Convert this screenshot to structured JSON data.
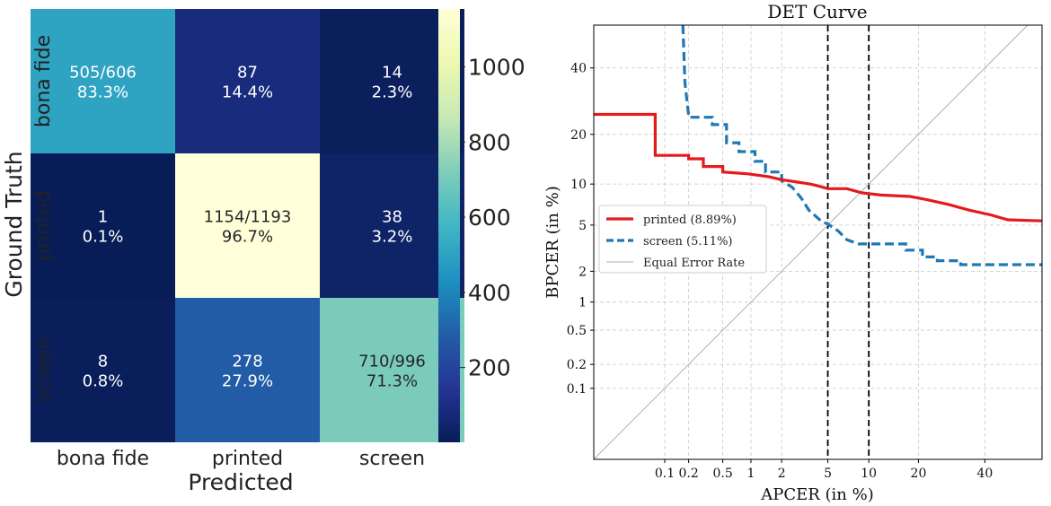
{
  "chart_data": [
    {
      "type": "heatmap",
      "title": "",
      "xlabel": "Predicted",
      "ylabel": "Ground Truth",
      "x_categories": [
        "bona fide",
        "printed",
        "screen"
      ],
      "y_categories": [
        "bona fide",
        "printed",
        "screen"
      ],
      "values": [
        [
          505,
          87,
          14
        ],
        [
          1,
          1154,
          38
        ],
        [
          8,
          278,
          710
        ]
      ],
      "cell_labels": [
        [
          [
            "505/606",
            "83.3%"
          ],
          [
            "87",
            "14.4%"
          ],
          [
            "14",
            "2.3%"
          ]
        ],
        [
          [
            "1",
            "0.1%"
          ],
          [
            "1154/1193",
            "96.7%"
          ],
          [
            "38",
            "3.2%"
          ]
        ],
        [
          [
            "8",
            "0.8%"
          ],
          [
            "278",
            "27.9%"
          ],
          [
            "710/996",
            "71.3%"
          ]
        ]
      ],
      "colorbar": {
        "min": 1,
        "max": 1154,
        "ticks": [
          "200",
          "400",
          "600",
          "800",
          "1000"
        ],
        "tick_values": [
          200,
          400,
          600,
          800,
          1000
        ],
        "colormap": "YlGnBu"
      }
    },
    {
      "type": "line",
      "title": "DET Curve",
      "xlabel": "APCER (in %)",
      "ylabel": "BPCER (in %)",
      "x_scale": "probit",
      "y_scale": "probit",
      "xlim": [
        0.01,
        60
      ],
      "ylim": [
        0.01,
        55
      ],
      "x_ticks": [
        0.1,
        0.2,
        0.5,
        1,
        2,
        5,
        10,
        20,
        40
      ],
      "x_tick_labels": [
        "0.1",
        "0.2",
        "0.5",
        "1",
        "2",
        "5",
        "10",
        "20",
        "40"
      ],
      "y_ticks": [
        0.1,
        0.2,
        0.5,
        1,
        2,
        5,
        10,
        20,
        40
      ],
      "y_tick_labels": [
        "0.1",
        "0.2",
        "0.5",
        "1",
        "2",
        "5",
        "10",
        "20",
        "40"
      ],
      "vlines": [
        5,
        10
      ],
      "grid": true,
      "legend_position": "center-left",
      "series": [
        {
          "name": "printed (8.89%)",
          "color": "#e41a1c",
          "style": "solid",
          "points": [
            [
              0.01,
              25.3
            ],
            [
              0.075,
              25.3
            ],
            [
              0.075,
              15.2
            ],
            [
              0.2,
              15.2
            ],
            [
              0.2,
              14.5
            ],
            [
              0.3,
              14.5
            ],
            [
              0.3,
              13
            ],
            [
              0.5,
              13
            ],
            [
              0.5,
              12
            ],
            [
              0.9,
              11.7
            ],
            [
              1.5,
              11.2
            ],
            [
              2.0,
              10.7
            ],
            [
              2.8,
              10.3
            ],
            [
              3.6,
              10.0
            ],
            [
              4.2,
              9.7
            ],
            [
              5.0,
              9.3
            ],
            [
              7.0,
              9.3
            ],
            [
              9.0,
              8.7
            ],
            [
              12,
              8.4
            ],
            [
              18,
              8.2
            ],
            [
              22,
              7.8
            ],
            [
              28,
              7.2
            ],
            [
              35,
              6.5
            ],
            [
              42,
              6.0
            ],
            [
              48,
              5.5
            ],
            [
              60,
              5.4
            ]
          ]
        },
        {
          "name": "screen (5.11%)",
          "color": "#1f77b4",
          "style": "dashed",
          "points": [
            [
              0.17,
              55
            ],
            [
              0.18,
              35
            ],
            [
              0.2,
              25
            ],
            [
              0.2,
              24.5
            ],
            [
              0.38,
              24.5
            ],
            [
              0.38,
              22.5
            ],
            [
              0.55,
              22.5
            ],
            [
              0.55,
              18
            ],
            [
              0.75,
              18
            ],
            [
              0.75,
              16
            ],
            [
              1.1,
              16
            ],
            [
              1.1,
              14
            ],
            [
              1.4,
              14
            ],
            [
              1.4,
              12
            ],
            [
              2.0,
              12
            ],
            [
              2.0,
              10.5
            ],
            [
              2.5,
              9.5
            ],
            [
              3.0,
              8
            ],
            [
              3.5,
              6.5
            ],
            [
              4.5,
              5.3
            ],
            [
              5.0,
              5.1
            ],
            [
              6.0,
              4.5
            ],
            [
              7.0,
              3.8
            ],
            [
              8.5,
              3.5
            ],
            [
              17,
              3.5
            ],
            [
              17,
              3.1
            ],
            [
              21,
              3.1
            ],
            [
              21,
              2.7
            ],
            [
              25,
              2.7
            ],
            [
              25,
              2.5
            ],
            [
              32,
              2.5
            ],
            [
              32,
              2.3
            ],
            [
              60,
              2.3
            ]
          ]
        },
        {
          "name": "Equal Error Rate",
          "color": "#b0b0b0",
          "style": "solid",
          "points": [
            [
              0.01,
              0.01
            ],
            [
              55,
              55
            ]
          ]
        }
      ]
    }
  ]
}
